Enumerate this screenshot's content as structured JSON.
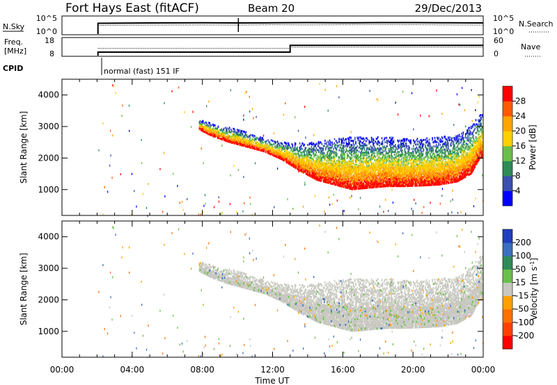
{
  "header": {
    "station": "Fort Hays East (fitACF)",
    "beam": "Beam 20",
    "date": "29/Dec/2013"
  },
  "chart_data": [
    {
      "type": "line",
      "panel": "noise",
      "left_label": "N.Sky",
      "right_label": "N.Search",
      "left_ticks": [
        "10^5",
        "10^0"
      ],
      "right_ticks": [
        "10^5",
        "10^0"
      ],
      "x_range_hours": [
        0,
        24
      ],
      "series": [
        {
          "name": "N.Sky",
          "style": "solid",
          "x": [
            2.05,
            2.05,
            5,
            8,
            10,
            12,
            14,
            16,
            18,
            20,
            22,
            24
          ],
          "y": [
            0,
            0.62,
            0.64,
            0.65,
            0.64,
            0.65,
            0.66,
            0.65,
            0.66,
            0.66,
            0.65,
            0.64
          ]
        },
        {
          "name": "N.Search",
          "style": "dotted",
          "x": [
            2.05,
            5,
            8,
            10,
            12,
            14,
            16,
            18,
            20,
            22,
            24
          ],
          "y": [
            0.5,
            0.52,
            0.53,
            0.52,
            0.54,
            0.53,
            0.54,
            0.55,
            0.54,
            0.53,
            0.52
          ]
        }
      ]
    },
    {
      "type": "line",
      "panel": "frequency",
      "left_label_lines": [
        "Freq.",
        "[MHz]"
      ],
      "right_label": "Nave",
      "left_ticks": [
        "18",
        "8"
      ],
      "right_ticks": [
        "60",
        "0"
      ],
      "x_range_hours": [
        0,
        24
      ],
      "series": [
        {
          "name": "Freq.",
          "style": "solid",
          "x": [
            2.05,
            2.05,
            13.0,
            13.0,
            24
          ],
          "y": [
            8,
            10.2,
            10.2,
            14.6,
            14.6
          ]
        },
        {
          "name": "Nave",
          "style": "dotted",
          "x": [
            2.05,
            13.0,
            13.0,
            24
          ],
          "y": [
            28,
            28,
            32,
            32
          ]
        }
      ]
    },
    {
      "type": "table",
      "panel": "cpid",
      "label": "CPID",
      "entries": [
        {
          "start_hour": 2.05,
          "text": "normal (fast) 151 IF"
        }
      ]
    },
    {
      "type": "heatmap",
      "panel": "power",
      "ylabel": "Slant Range [km]",
      "ylim": [
        180,
        4500
      ],
      "y_ticks": [
        1000,
        2000,
        3000,
        4000
      ],
      "colorbar_label": "Power [dB]",
      "colorbar_range": [
        0,
        32
      ],
      "colorbar_ticks": [
        4,
        8,
        12,
        16,
        20,
        24,
        28
      ],
      "colorbar_colors": [
        "#0000ff",
        "#3a4fb0",
        "#2e8b57",
        "#6abf4b",
        "#ffd000",
        "#ffa500",
        "#ff5a00",
        "#ff0000"
      ],
      "echo_profile": {
        "hours": [
          7.8,
          8.5,
          9.5,
          10.5,
          11.5,
          12.5,
          13.5,
          14.5,
          15.5,
          16.5,
          17.5,
          18.5,
          19.5,
          20.5,
          21.5,
          22.5,
          23.3,
          23.8
        ],
        "lower_km": [
          2900,
          2700,
          2500,
          2350,
          2200,
          1950,
          1600,
          1300,
          1150,
          1000,
          1050,
          1100,
          1100,
          1120,
          1150,
          1250,
          1500,
          2000
        ],
        "upper_km": [
          3200,
          3100,
          2950,
          2800,
          2600,
          2500,
          2450,
          2500,
          2600,
          2650,
          2650,
          2650,
          2600,
          2600,
          2650,
          2700,
          3000,
          3400
        ]
      }
    },
    {
      "type": "heatmap",
      "panel": "velocity",
      "ylabel": "Slant Range [km]",
      "ylim": [
        180,
        4500
      ],
      "y_ticks": [
        1000,
        2000,
        3000,
        4000
      ],
      "colorbar_label": "Velocity [m s^-1]",
      "colorbar_ticks": [
        "200",
        "100",
        "50",
        "15",
        "-15",
        "-50",
        "-100",
        "-200"
      ],
      "colorbar_colors": [
        "#1f3fbf",
        "#3a6fc0",
        "#2e8b57",
        "#6abf4b",
        "#c8c8c0",
        "#ffa000",
        "#ff7000",
        "#ff4000",
        "#ff0000"
      ],
      "xlabel": "Time UT",
      "x_ticks": [
        "00:00",
        "04:00",
        "08:00",
        "12:00",
        "16:00",
        "20:00",
        "00:00"
      ],
      "x_range_hours": [
        0,
        24
      ]
    }
  ]
}
